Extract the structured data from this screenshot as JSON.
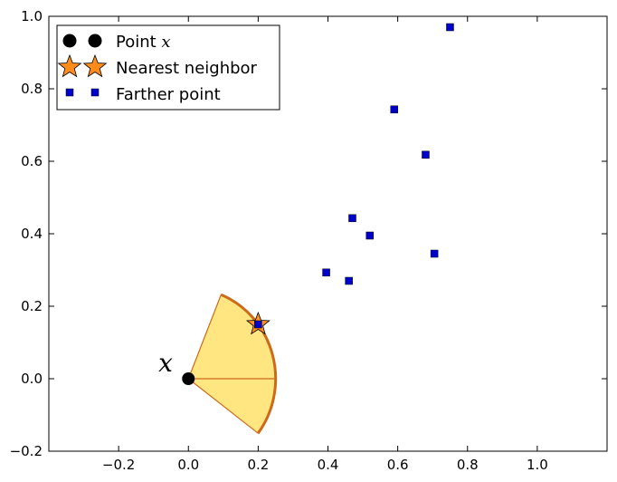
{
  "chart_data": {
    "type": "scatter",
    "xlim": [
      -0.4,
      1.2
    ],
    "ylim": [
      -0.2,
      1.0
    ],
    "x_ticks": [
      -0.2,
      0.0,
      0.2,
      0.4,
      0.6,
      0.8,
      1.0
    ],
    "x_tick_labels": [
      "−0.2",
      "0.0",
      "0.2",
      "0.4",
      "0.6",
      "0.8",
      "1.0"
    ],
    "y_ticks": [
      -0.2,
      0.0,
      0.2,
      0.4,
      0.6,
      0.8,
      1.0
    ],
    "y_tick_labels": [
      "−0.2",
      "0.0",
      "0.2",
      "0.4",
      "0.6",
      "0.8",
      "1.0"
    ],
    "grid": false,
    "legend_position": "upper-left",
    "series": [
      {
        "name": "Point x",
        "marker": "circle",
        "color": "#000000",
        "points": [
          [
            0.0,
            0.0
          ]
        ]
      },
      {
        "name": "Nearest neighbor",
        "marker": "star",
        "color": "#ff8c1a",
        "points": [
          [
            0.2,
            0.15
          ]
        ]
      },
      {
        "name": "Farther point",
        "marker": "square",
        "color": "#0000cc",
        "points": [
          [
            0.2,
            0.15
          ],
          [
            0.395,
            0.293
          ],
          [
            0.46,
            0.27
          ],
          [
            0.47,
            0.443
          ],
          [
            0.52,
            0.395
          ],
          [
            0.59,
            0.743
          ],
          [
            0.68,
            0.618
          ],
          [
            0.705,
            0.345
          ],
          [
            0.75,
            0.97
          ]
        ]
      }
    ],
    "annotations": [
      {
        "text": "x",
        "x": -0.06,
        "y": 0.02
      }
    ],
    "wedge": {
      "center": [
        0.0,
        0.0
      ],
      "radius": 0.25,
      "theta1_deg": -37,
      "theta2_deg": 68,
      "fill": "#ffe680",
      "edge": "#cc6a1a"
    },
    "legend": {
      "point_x_prefix": "Point ",
      "point_x_var": "x",
      "nearest_label": "Nearest neighbor",
      "farther_label": "Farther point"
    }
  }
}
